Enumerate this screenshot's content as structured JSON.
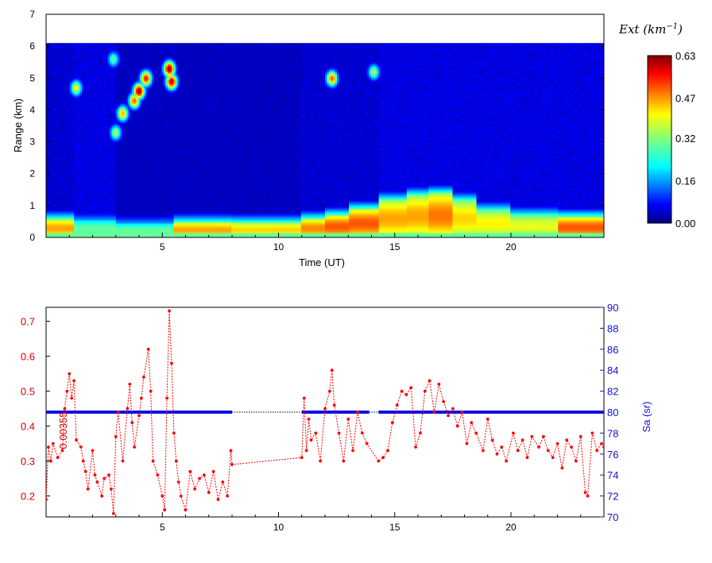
{
  "chart_data": [
    {
      "type": "heatmap",
      "xlabel": "Time  (UT)",
      "ylabel": "Range (km)",
      "xlim": [
        0,
        24
      ],
      "ylim": [
        0,
        7
      ],
      "x_ticks": [
        "5",
        "10",
        "15",
        "20"
      ],
      "y_ticks": [
        "0",
        "1",
        "2",
        "3",
        "4",
        "5",
        "6",
        "7"
      ],
      "data_top_km": 6.1,
      "colorbar": {
        "title": "Ext (km",
        "title_sup": "−1",
        "title_close": ")",
        "ticks": [
          "0.63",
          "0.47",
          "0.32",
          "0.16",
          "0.00"
        ],
        "range": [
          0,
          0.63
        ]
      },
      "columns": [
        {
          "t0": 0,
          "t1": 1.2,
          "bl": 0.6,
          "blv": 0.45,
          "bg": 0.05
        },
        {
          "t0": 1.2,
          "t1": 3,
          "bl": 0.55,
          "blv": 0.3,
          "bg": 0.06
        },
        {
          "t0": 3,
          "t1": 5.5,
          "bl": 0.45,
          "blv": 0.3,
          "bg": 0.04
        },
        {
          "t0": 5.5,
          "t1": 8,
          "bl": 0.5,
          "blv": 0.45,
          "bg": 0.04
        },
        {
          "t0": 8,
          "t1": 11,
          "bl": 0.5,
          "blv": 0.42,
          "bg": 0.04
        },
        {
          "t0": 11,
          "t1": 12,
          "bl": 0.6,
          "blv": 0.47,
          "bg": 0.05
        },
        {
          "t0": 12,
          "t1": 13,
          "bl": 0.7,
          "blv": 0.5,
          "bg": 0.05
        },
        {
          "t0": 13,
          "t1": 14.3,
          "bl": 0.9,
          "blv": 0.5,
          "bg": 0.05
        },
        {
          "t0": 14.3,
          "t1": 15.5,
          "bl": 1.2,
          "blv": 0.45,
          "bg": 0.06
        },
        {
          "t0": 15.5,
          "t1": 16.5,
          "bl": 1.35,
          "blv": 0.45,
          "bg": 0.06
        },
        {
          "t0": 16.5,
          "t1": 17.5,
          "bl": 1.4,
          "blv": 0.48,
          "bg": 0.06
        },
        {
          "t0": 17.5,
          "t1": 18.5,
          "bl": 1.2,
          "blv": 0.42,
          "bg": 0.06
        },
        {
          "t0": 18.5,
          "t1": 20,
          "bl": 0.9,
          "blv": 0.4,
          "bg": 0.06
        },
        {
          "t0": 20,
          "t1": 22,
          "bl": 0.75,
          "blv": 0.38,
          "bg": 0.06
        },
        {
          "t0": 22,
          "t1": 24,
          "bl": 0.65,
          "blv": 0.5,
          "bg": 0.06
        }
      ],
      "features": [
        {
          "t": 1.3,
          "z": 4.7,
          "v": 0.4
        },
        {
          "t": 3.3,
          "z": 3.9,
          "v": 0.45
        },
        {
          "t": 3.0,
          "z": 3.3,
          "v": 0.35
        },
        {
          "t": 4.0,
          "z": 4.6,
          "v": 0.63
        },
        {
          "t": 4.3,
          "z": 5.0,
          "v": 0.55
        },
        {
          "t": 3.8,
          "z": 4.3,
          "v": 0.5
        },
        {
          "t": 5.3,
          "z": 5.3,
          "v": 0.63
        },
        {
          "t": 5.4,
          "z": 4.9,
          "v": 0.6
        },
        {
          "t": 2.9,
          "z": 5.6,
          "v": 0.3
        },
        {
          "t": 12.3,
          "z": 5.0,
          "v": 0.5
        },
        {
          "t": 14.1,
          "z": 5.2,
          "v": 0.35
        }
      ]
    },
    {
      "type": "line",
      "xlim": [
        0,
        24
      ],
      "x_ticks": [
        "5",
        "10",
        "15",
        "20"
      ],
      "y_left": {
        "lim": [
          0.14,
          0.74
        ],
        "ticks": [
          "0.2",
          "0.3",
          "0.4",
          "0.5",
          "0.6",
          "0.7"
        ]
      },
      "y_right": {
        "label": "Sa (sr)",
        "lim": [
          70,
          90
        ],
        "ticks": [
          "70",
          "72",
          "74",
          "76",
          "78",
          "80",
          "82",
          "84",
          "86",
          "88",
          "90"
        ]
      },
      "left_axis_fragment": "0.00355",
      "series": [
        {
          "axis": "left",
          "color": "#ff0000",
          "points": [
            [
              0,
              0.19
            ],
            [
              0.1,
              0.34
            ],
            [
              0.2,
              0.3
            ],
            [
              0.3,
              0.35
            ],
            [
              0.5,
              0.31
            ],
            [
              0.7,
              0.33
            ],
            [
              0.8,
              0.45
            ],
            [
              0.9,
              0.5
            ],
            [
              1.0,
              0.55
            ],
            [
              1.1,
              0.48
            ],
            [
              1.2,
              0.53
            ],
            [
              1.3,
              0.36
            ],
            [
              1.5,
              0.34
            ],
            [
              1.6,
              0.3
            ],
            [
              1.7,
              0.27
            ],
            [
              1.8,
              0.22
            ],
            [
              2.0,
              0.33
            ],
            [
              2.1,
              0.26
            ],
            [
              2.2,
              0.24
            ],
            [
              2.4,
              0.2
            ],
            [
              2.5,
              0.25
            ],
            [
              2.7,
              0.26
            ],
            [
              2.8,
              0.22
            ],
            [
              2.9,
              0.15
            ],
            [
              3.0,
              0.37
            ],
            [
              3.1,
              0.44
            ],
            [
              3.3,
              0.3
            ],
            [
              3.5,
              0.45
            ],
            [
              3.6,
              0.52
            ],
            [
              3.7,
              0.41
            ],
            [
              3.8,
              0.34
            ],
            [
              4.0,
              0.43
            ],
            [
              4.1,
              0.48
            ],
            [
              4.2,
              0.54
            ],
            [
              4.4,
              0.62
            ],
            [
              4.5,
              0.5
            ],
            [
              4.6,
              0.3
            ],
            [
              4.8,
              0.26
            ],
            [
              5.0,
              0.2
            ],
            [
              5.1,
              0.16
            ],
            [
              5.2,
              0.48
            ],
            [
              5.3,
              0.73
            ],
            [
              5.4,
              0.58
            ],
            [
              5.5,
              0.38
            ],
            [
              5.6,
              0.3
            ],
            [
              5.7,
              0.24
            ],
            [
              5.8,
              0.2
            ],
            [
              6.0,
              0.16
            ],
            [
              6.2,
              0.27
            ],
            [
              6.4,
              0.22
            ],
            [
              6.6,
              0.25
            ],
            [
              6.8,
              0.26
            ],
            [
              7.0,
              0.21
            ],
            [
              7.2,
              0.27
            ],
            [
              7.4,
              0.19
            ],
            [
              7.6,
              0.24
            ],
            [
              7.8,
              0.2
            ],
            [
              7.95,
              0.33
            ],
            [
              8.0,
              0.29
            ],
            [
              11.0,
              0.31
            ],
            [
              11.1,
              0.48
            ],
            [
              11.2,
              0.33
            ],
            [
              11.3,
              0.42
            ],
            [
              11.4,
              0.36
            ],
            [
              11.6,
              0.38
            ],
            [
              11.8,
              0.3
            ],
            [
              12.0,
              0.45
            ],
            [
              12.2,
              0.5
            ],
            [
              12.3,
              0.56
            ],
            [
              12.4,
              0.46
            ],
            [
              12.6,
              0.38
            ],
            [
              12.8,
              0.3
            ],
            [
              13.0,
              0.42
            ],
            [
              13.2,
              0.33
            ],
            [
              13.4,
              0.44
            ],
            [
              13.6,
              0.38
            ],
            [
              13.8,
              0.35
            ],
            [
              14.3,
              0.3
            ],
            [
              14.5,
              0.31
            ],
            [
              14.7,
              0.33
            ],
            [
              14.9,
              0.41
            ],
            [
              15.1,
              0.46
            ],
            [
              15.3,
              0.5
            ],
            [
              15.5,
              0.49
            ],
            [
              15.7,
              0.51
            ],
            [
              15.9,
              0.34
            ],
            [
              16.1,
              0.38
            ],
            [
              16.3,
              0.5
            ],
            [
              16.5,
              0.53
            ],
            [
              16.7,
              0.44
            ],
            [
              16.9,
              0.52
            ],
            [
              17.1,
              0.47
            ],
            [
              17.3,
              0.43
            ],
            [
              17.5,
              0.45
            ],
            [
              17.7,
              0.4
            ],
            [
              17.9,
              0.44
            ],
            [
              18.1,
              0.35
            ],
            [
              18.3,
              0.41
            ],
            [
              18.5,
              0.38
            ],
            [
              18.8,
              0.33
            ],
            [
              19.0,
              0.42
            ],
            [
              19.2,
              0.36
            ],
            [
              19.4,
              0.32
            ],
            [
              19.6,
              0.34
            ],
            [
              19.8,
              0.3
            ],
            [
              20.1,
              0.38
            ],
            [
              20.3,
              0.33
            ],
            [
              20.5,
              0.36
            ],
            [
              20.7,
              0.31
            ],
            [
              20.9,
              0.37
            ],
            [
              21.2,
              0.34
            ],
            [
              21.4,
              0.37
            ],
            [
              21.6,
              0.33
            ],
            [
              21.8,
              0.31
            ],
            [
              22.0,
              0.35
            ],
            [
              22.2,
              0.28
            ],
            [
              22.4,
              0.36
            ],
            [
              22.6,
              0.34
            ],
            [
              22.8,
              0.3
            ],
            [
              23.0,
              0.37
            ],
            [
              23.2,
              0.21
            ],
            [
              23.3,
              0.2
            ],
            [
              23.5,
              0.38
            ],
            [
              23.7,
              0.33
            ],
            [
              23.9,
              0.35
            ],
            [
              24.0,
              0.34
            ]
          ]
        },
        {
          "axis": "right",
          "color": "#1010e0",
          "segments": [
            [
              0,
              8
            ],
            [
              11,
              13.9
            ],
            [
              14.3,
              24
            ]
          ],
          "value": 80,
          "gap_color": "#000000"
        }
      ]
    }
  ]
}
